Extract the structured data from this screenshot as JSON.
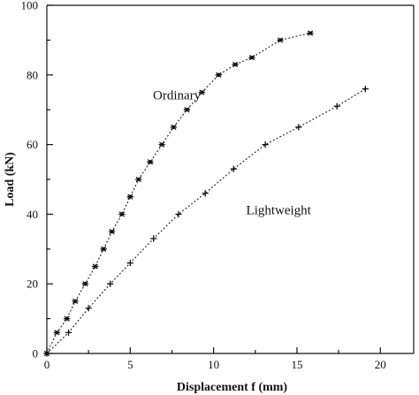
{
  "chart_data": {
    "type": "line",
    "title": "",
    "xlabel": "Displacement f (mm)",
    "ylabel": "Load (kN)",
    "xlim": [
      0,
      22
    ],
    "ylim": [
      0,
      100
    ],
    "x_ticks": [
      0,
      5,
      10,
      15,
      20
    ],
    "y_ticks": [
      0,
      20,
      40,
      60,
      80,
      100
    ],
    "grid": false,
    "series": [
      {
        "name": "Ordinary",
        "marker": "asterisk",
        "x": [
          0,
          0.6,
          1.2,
          1.7,
          2.3,
          2.9,
          3.4,
          3.9,
          4.5,
          5.0,
          5.5,
          6.2,
          6.9,
          7.6,
          8.4,
          9.3,
          10.3,
          11.3,
          12.3,
          14.0,
          15.8
        ],
        "y": [
          0,
          6,
          10,
          15,
          20,
          25,
          30,
          35,
          40,
          45,
          50,
          55,
          60,
          65,
          70,
          75,
          80,
          83,
          85,
          90,
          92
        ]
      },
      {
        "name": "Lightweight",
        "marker": "plus",
        "x": [
          0,
          1.3,
          2.5,
          3.8,
          5.0,
          6.4,
          7.9,
          9.5,
          11.2,
          13.1,
          15.1,
          17.4,
          19.1
        ],
        "y": [
          0,
          6,
          13,
          20,
          26,
          33,
          40,
          46,
          53,
          60,
          65,
          71,
          76
        ]
      }
    ],
    "annotations": [
      {
        "text": "Ordinary",
        "x": 7.8,
        "y": 73
      },
      {
        "text": "Lightweight",
        "x": 13.9,
        "y": 40
      }
    ]
  }
}
